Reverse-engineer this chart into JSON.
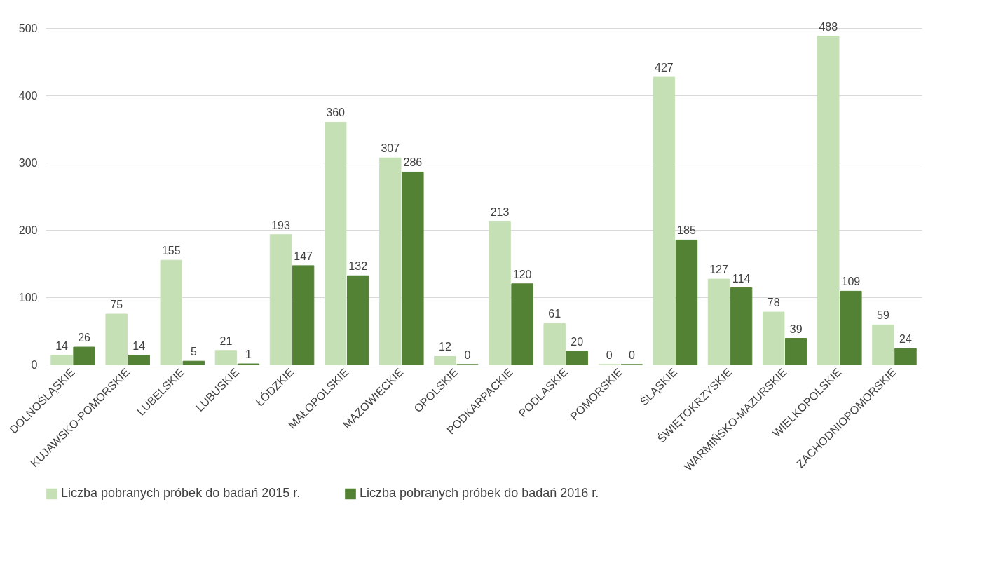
{
  "chart_data": {
    "type": "bar",
    "categories": [
      "DOLNOŚLĄSKIE",
      "KUJAWSKO-POMORSKIE",
      "LUBELSKIE",
      "LUBUSKIE",
      "ŁÓDZKIE",
      "MAŁOPOLSKIE",
      "MAZOWIECKIE",
      "OPOLSKIE",
      "PODKARPACKIE",
      "PODLASKIE",
      "POMORSKIE",
      "ŚLĄSKIE",
      "ŚWIĘTOKRZYSKIE",
      "WARMIŃSKO-MAZURSKIE",
      "WIELKOPOLSKIE",
      "ZACHODNIOPOMORSKIE"
    ],
    "series": [
      {
        "name": "Liczba pobranych próbek do badań 2015 r.",
        "color": "#c5e0b4",
        "values": [
          14,
          75,
          155,
          21,
          193,
          360,
          307,
          12,
          213,
          61,
          0,
          427,
          127,
          78,
          488,
          59
        ]
      },
      {
        "name": "Liczba pobranych próbek do badań 2016 r.",
        "color": "#548235",
        "values": [
          26,
          14,
          5,
          1,
          147,
          132,
          286,
          0,
          120,
          20,
          0,
          185,
          114,
          39,
          109,
          24
        ]
      }
    ],
    "ylim": [
      0,
      500
    ],
    "yticks": [
      0,
      100,
      200,
      300,
      400,
      500
    ],
    "grid": "y",
    "legend": "bottom",
    "data_labels": true
  }
}
